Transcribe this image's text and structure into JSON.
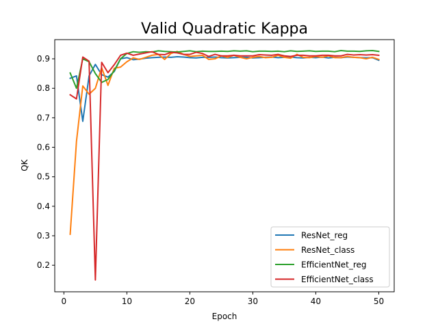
{
  "chart_data": {
    "type": "line",
    "title": "Valid Quadratic Kappa",
    "xlabel": "Epoch",
    "ylabel": "QK",
    "xlim": [
      -1.45,
      52.45
    ],
    "ylim": [
      0.11,
      0.965
    ],
    "xticks": [
      0,
      10,
      20,
      30,
      40,
      50
    ],
    "yticks": [
      0.2,
      0.3,
      0.4,
      0.5,
      0.6,
      0.7,
      0.8,
      0.9
    ],
    "xtick_labels": [
      "0",
      "10",
      "20",
      "30",
      "40",
      "50"
    ],
    "ytick_labels": [
      "0.2",
      "0.3",
      "0.4",
      "0.5",
      "0.6",
      "0.7",
      "0.8",
      "0.9"
    ],
    "grid": false,
    "legend_position": "lower right",
    "x": [
      1,
      2,
      3,
      4,
      5,
      6,
      7,
      8,
      9,
      10,
      11,
      12,
      13,
      14,
      15,
      16,
      17,
      18,
      19,
      20,
      21,
      22,
      23,
      24,
      25,
      26,
      27,
      28,
      29,
      30,
      31,
      32,
      33,
      34,
      35,
      36,
      37,
      38,
      39,
      40,
      41,
      42,
      43,
      44,
      45,
      46,
      47,
      48,
      49,
      50
    ],
    "series": [
      {
        "name": "ResNet_reg",
        "color": "#1f77b4",
        "values": [
          0.834,
          0.842,
          0.688,
          0.842,
          0.881,
          0.846,
          0.838,
          0.857,
          0.9,
          0.904,
          0.897,
          0.899,
          0.902,
          0.904,
          0.905,
          0.906,
          0.905,
          0.907,
          0.906,
          0.904,
          0.903,
          0.905,
          0.905,
          0.906,
          0.904,
          0.903,
          0.904,
          0.905,
          0.905,
          0.903,
          0.904,
          0.905,
          0.906,
          0.904,
          0.905,
          0.906,
          0.904,
          0.903,
          0.905,
          0.904,
          0.906,
          0.903,
          0.905,
          0.904,
          0.906,
          0.905,
          0.904,
          0.903,
          0.904,
          0.895
        ]
      },
      {
        "name": "ResNet_class",
        "color": "#ff7f0e",
        "values": [
          0.305,
          0.62,
          0.808,
          0.78,
          0.8,
          0.87,
          0.81,
          0.868,
          0.872,
          0.89,
          0.903,
          0.898,
          0.905,
          0.912,
          0.915,
          0.898,
          0.918,
          0.925,
          0.915,
          0.908,
          0.91,
          0.912,
          0.898,
          0.9,
          0.91,
          0.905,
          0.912,
          0.905,
          0.9,
          0.905,
          0.908,
          0.904,
          0.905,
          0.912,
          0.905,
          0.902,
          0.915,
          0.905,
          0.904,
          0.908,
          0.905,
          0.91,
          0.904,
          0.904,
          0.908,
          0.905,
          0.904,
          0.9,
          0.905,
          0.898
        ]
      },
      {
        "name": "EfficientNet_reg",
        "color": "#2ca02c",
        "values": [
          0.852,
          0.8,
          0.9,
          0.89,
          0.85,
          0.82,
          0.83,
          0.86,
          0.9,
          0.918,
          0.924,
          0.922,
          0.924,
          0.923,
          0.927,
          0.925,
          0.924,
          0.923,
          0.925,
          0.927,
          0.924,
          0.926,
          0.925,
          0.925,
          0.926,
          0.925,
          0.927,
          0.926,
          0.927,
          0.924,
          0.926,
          0.926,
          0.925,
          0.926,
          0.924,
          0.927,
          0.925,
          0.926,
          0.927,
          0.925,
          0.926,
          0.926,
          0.924,
          0.928,
          0.926,
          0.926,
          0.925,
          0.927,
          0.928,
          0.925
        ]
      },
      {
        "name": "EfficientNet_class",
        "color": "#d62728",
        "values": [
          0.778,
          0.764,
          0.906,
          0.892,
          0.15,
          0.888,
          0.853,
          0.88,
          0.912,
          0.919,
          0.912,
          0.916,
          0.92,
          0.924,
          0.915,
          0.914,
          0.922,
          0.92,
          0.915,
          0.915,
          0.922,
          0.918,
          0.908,
          0.915,
          0.91,
          0.91,
          0.912,
          0.91,
          0.91,
          0.91,
          0.914,
          0.913,
          0.912,
          0.915,
          0.91,
          0.908,
          0.912,
          0.912,
          0.91,
          0.91,
          0.912,
          0.912,
          0.91,
          0.91,
          0.915,
          0.913,
          0.914,
          0.913,
          0.914,
          0.912
        ]
      }
    ]
  }
}
